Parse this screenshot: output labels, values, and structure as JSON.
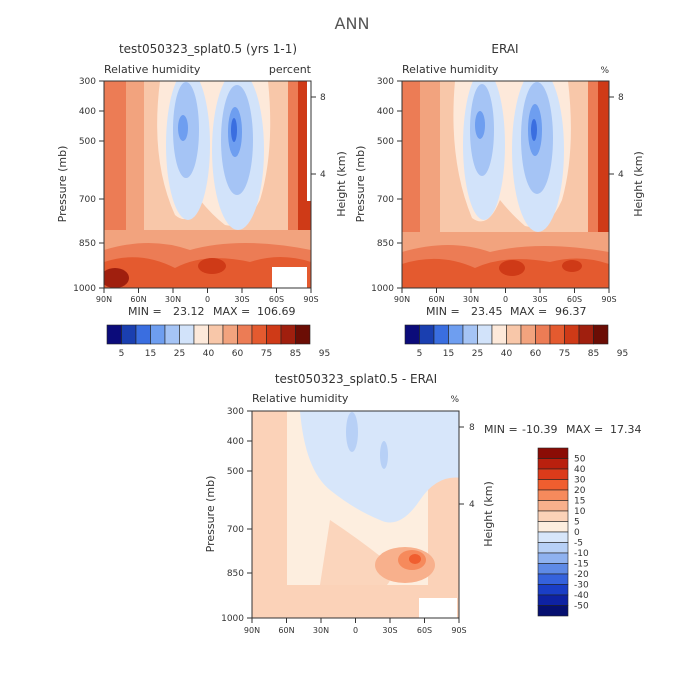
{
  "figure": {
    "title": "ANN"
  },
  "chart_data": [
    {
      "type": "heatmap",
      "title": "test050323_splat0.5 (yrs 1-1)",
      "left_label": "Relative humidity",
      "right_label": "percent",
      "ylabel": "Pressure (mb)",
      "y2label": "Height (km)",
      "x_ticks": [
        "90N",
        "60N",
        "30N",
        "0",
        "30S",
        "60S",
        "90S"
      ],
      "y_ticks": [
        "300",
        "400",
        "500",
        "700",
        "850",
        "1000"
      ],
      "y2_ticks": [
        "8",
        "4"
      ],
      "min_label": "MIN =",
      "min_value": "23.12",
      "max_label": "MAX =",
      "max_value": "106.69",
      "colorbar": {
        "orientation": "horizontal",
        "labels": [
          "5",
          "15",
          "25",
          "40",
          "60",
          "75",
          "85",
          "95"
        ],
        "colors": [
          "#0b0b7a",
          "#1a3fb0",
          "#3a6ee0",
          "#6e9ef0",
          "#a5c4f5",
          "#d2e3fa",
          "#fde9da",
          "#f8c7a9",
          "#f2a37e",
          "#ec7c55",
          "#e45a2f",
          "#cf3a17",
          "#a01f0e",
          "#6b0d05"
        ]
      },
      "missing_region": "60S-80S near surface"
    },
    {
      "type": "heatmap",
      "title": "ERAI",
      "left_label": "Relative humidity",
      "right_label": "%",
      "ylabel": "Pressure (mb)",
      "y2label": "Height (km)",
      "x_ticks": [
        "90N",
        "60N",
        "30N",
        "0",
        "30S",
        "60S",
        "90S"
      ],
      "y_ticks": [
        "300",
        "400",
        "500",
        "700",
        "850",
        "1000"
      ],
      "y2_ticks": [
        "8",
        "4"
      ],
      "min_label": "MIN =",
      "min_value": "23.45",
      "max_label": "MAX =",
      "max_value": "96.37",
      "colorbar": {
        "orientation": "horizontal",
        "labels": [
          "5",
          "15",
          "25",
          "40",
          "60",
          "75",
          "85",
          "95"
        ],
        "colors": [
          "#0b0b7a",
          "#1a3fb0",
          "#3a6ee0",
          "#6e9ef0",
          "#a5c4f5",
          "#d2e3fa",
          "#fde9da",
          "#f8c7a9",
          "#f2a37e",
          "#ec7c55",
          "#e45a2f",
          "#cf3a17",
          "#a01f0e",
          "#6b0d05"
        ]
      }
    },
    {
      "type": "heatmap",
      "title": "test050323_splat0.5 - ERAI",
      "left_label": "Relative humidity",
      "right_label": "%",
      "ylabel": "Pressure (mb)",
      "y2label": "Height (km)",
      "x_ticks": [
        "90N",
        "60N",
        "30N",
        "0",
        "30S",
        "60S",
        "90S"
      ],
      "y_ticks": [
        "300",
        "400",
        "500",
        "700",
        "850",
        "1000"
      ],
      "y2_ticks": [
        "8",
        "4"
      ],
      "min_label": "MIN =",
      "min_value": "-10.39",
      "max_label": "MAX =",
      "max_value": "17.34",
      "colorbar": {
        "orientation": "vertical",
        "labels": [
          "50",
          "40",
          "30",
          "20",
          "15",
          "10",
          "5",
          "0",
          "-5",
          "-10",
          "-15",
          "-20",
          "-30",
          "-40",
          "-50"
        ],
        "colors": [
          "#8b0c05",
          "#b9200e",
          "#dc3b1a",
          "#f05e2f",
          "#f68a5c",
          "#f8b08c",
          "#fbd2b8",
          "#fdeedf",
          "#d7e6fa",
          "#b7d0f6",
          "#8fb2f0",
          "#5e8ae6",
          "#3562dc",
          "#1a3ec6",
          "#0e22a3",
          "#061070"
        ]
      },
      "missing_region": "60S-80S near surface"
    }
  ]
}
